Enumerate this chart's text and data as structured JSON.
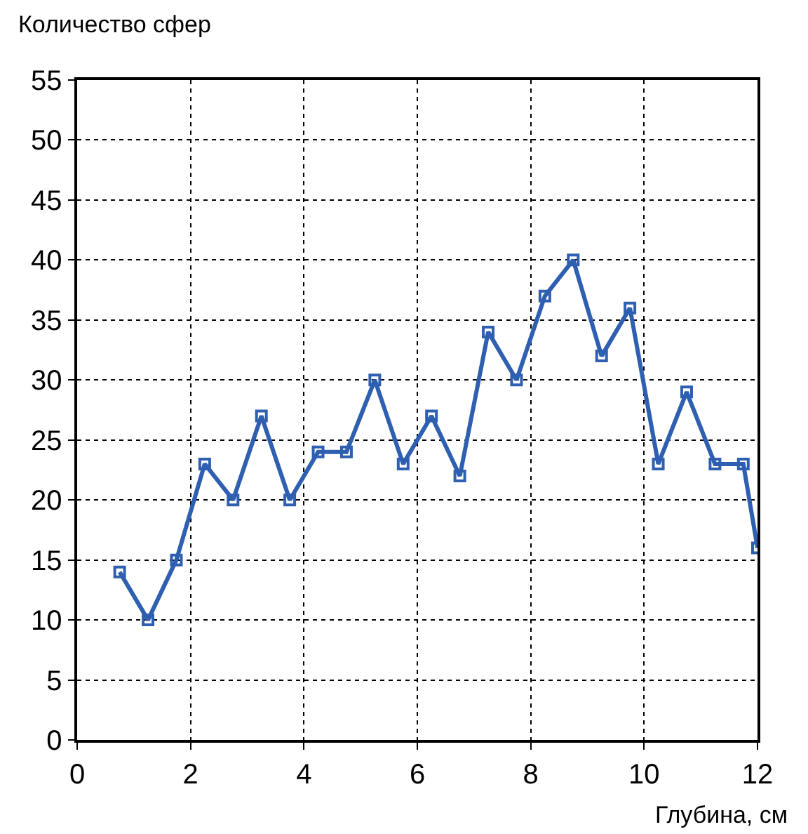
{
  "chart_data": {
    "type": "line",
    "xlabel": "Глубина, см",
    "ylabel": "Количество сфер",
    "x": [
      0.75,
      1.25,
      1.75,
      2.25,
      2.75,
      3.25,
      3.75,
      4.25,
      4.75,
      5.25,
      5.75,
      6.25,
      6.75,
      7.25,
      7.75,
      8.25,
      8.75,
      9.25,
      9.75,
      10.25,
      10.75,
      11.25,
      11.75,
      12
    ],
    "series": [
      {
        "color": "#2e5fb0",
        "values": [
          14,
          10,
          15,
          23,
          20,
          27,
          20,
          24,
          24,
          30,
          23,
          27,
          22,
          34,
          30,
          37,
          40,
          32,
          36,
          23,
          29,
          23,
          23,
          16
        ]
      }
    ],
    "xlim": [
      0,
      12
    ],
    "xticks": [
      0,
      2,
      4,
      6,
      8,
      10,
      12
    ],
    "ylim": [
      0,
      55
    ],
    "yticks": [
      0,
      5,
      10,
      15,
      20,
      25,
      30,
      35,
      40,
      45,
      50,
      55
    ],
    "grid": true,
    "marker": "square",
    "line_style": "solid"
  }
}
